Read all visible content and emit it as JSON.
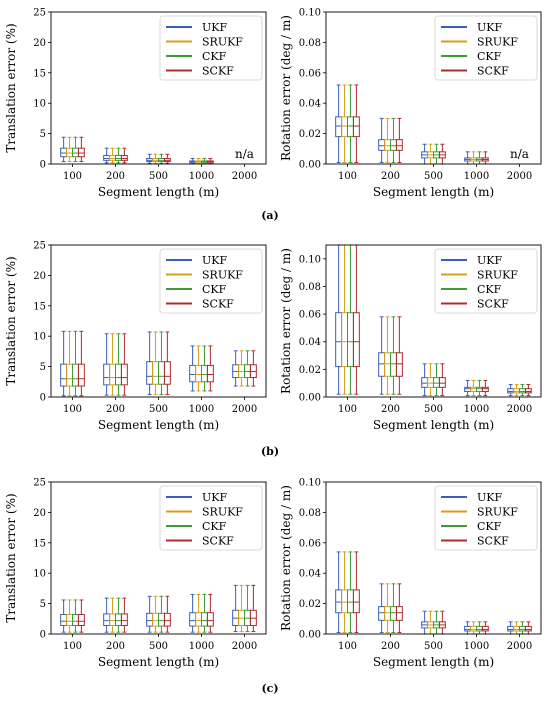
{
  "series_colors": {
    "UKF": "#3a5fb8",
    "SRUKF": "#d4a017",
    "CKF": "#3f9a37",
    "SCKF": "#b2282c"
  },
  "panel_captions": [
    "(a)",
    "(b)",
    "(c)"
  ],
  "chart_data": [
    {
      "type": "box",
      "panel": "(a)",
      "xlabel": "Segment length (m)",
      "ylabel": "Translation error (%)",
      "categories": [
        "100",
        "200",
        "500",
        "1000",
        "2000"
      ],
      "ylim": [
        0,
        25
      ],
      "yticks": [
        "0",
        "5",
        "10",
        "15",
        "20",
        "25"
      ],
      "legend": [
        "UKF",
        "SRUKF",
        "CKF",
        "SCKF"
      ],
      "legend_position": "top-right",
      "annotations": [
        {
          "category": "2000",
          "text": "n/a"
        }
      ],
      "boxes": [
        [
          0.4,
          1.2,
          1.8,
          2.6,
          4.4
        ],
        [
          0.2,
          0.6,
          0.9,
          1.4,
          2.6
        ],
        [
          0.1,
          0.4,
          0.6,
          0.9,
          1.6
        ],
        [
          0.1,
          0.2,
          0.4,
          0.5,
          0.9
        ],
        null
      ]
    },
    {
      "type": "box",
      "panel": "(a)",
      "xlabel": "Segment length (m)",
      "ylabel": "Rotation error (deg / m)",
      "categories": [
        "100",
        "200",
        "500",
        "1000",
        "2000"
      ],
      "ylim": [
        0,
        0.1
      ],
      "yticks": [
        "0.00",
        "0.02",
        "0.04",
        "0.06",
        "0.08",
        "0.10"
      ],
      "legend": [
        "UKF",
        "SRUKF",
        "CKF",
        "SCKF"
      ],
      "legend_position": "top-right",
      "annotations": [
        {
          "category": "2000",
          "text": "n/a"
        }
      ],
      "boxes": [
        [
          0.001,
          0.018,
          0.025,
          0.031,
          0.052
        ],
        [
          0.001,
          0.009,
          0.012,
          0.016,
          0.03
        ],
        [
          0.0,
          0.004,
          0.006,
          0.008,
          0.013
        ],
        [
          0.0,
          0.002,
          0.003,
          0.004,
          0.008
        ],
        null
      ]
    },
    {
      "type": "box",
      "panel": "(b)",
      "xlabel": "Segment length (m)",
      "ylabel": "Translation error (%)",
      "categories": [
        "100",
        "200",
        "500",
        "1000",
        "2000"
      ],
      "ylim": [
        0,
        25
      ],
      "yticks": [
        "0",
        "5",
        "10",
        "15",
        "20",
        "25"
      ],
      "legend": [
        "UKF",
        "SRUKF",
        "CKF",
        "SCKF"
      ],
      "legend_position": "top-right",
      "annotations": [],
      "boxes": [
        [
          0.2,
          1.8,
          3.0,
          5.4,
          10.8
        ],
        [
          0.3,
          2.0,
          3.2,
          5.4,
          10.4
        ],
        [
          0.4,
          2.1,
          3.4,
          5.8,
          10.7
        ],
        [
          1.0,
          2.5,
          3.7,
          5.2,
          8.4
        ],
        [
          1.8,
          3.2,
          4.2,
          5.3,
          7.6
        ]
      ]
    },
    {
      "type": "box",
      "panel": "(b)",
      "xlabel": "Segment length (m)",
      "ylabel": "Rotation error (deg / m)",
      "categories": [
        "100",
        "200",
        "500",
        "1000",
        "2000"
      ],
      "ylim": [
        0,
        0.11
      ],
      "yticks": [
        "0.00",
        "0.02",
        "0.04",
        "0.06",
        "0.08",
        "0.10"
      ],
      "legend": [
        "UKF",
        "SRUKF",
        "CKF",
        "SCKF"
      ],
      "legend_position": "top-right",
      "annotations": [],
      "boxes": [
        [
          0.002,
          0.022,
          0.04,
          0.061,
          0.11
        ],
        [
          0.002,
          0.015,
          0.024,
          0.032,
          0.058
        ],
        [
          0.001,
          0.007,
          0.01,
          0.014,
          0.024
        ],
        [
          0.001,
          0.004,
          0.006,
          0.007,
          0.012
        ],
        [
          0.001,
          0.003,
          0.004,
          0.006,
          0.009
        ]
      ]
    },
    {
      "type": "box",
      "panel": "(c)",
      "xlabel": "Segment length (m)",
      "ylabel": "Translation error (%)",
      "categories": [
        "100",
        "200",
        "500",
        "1000",
        "2000"
      ],
      "ylim": [
        0,
        25
      ],
      "yticks": [
        "0",
        "5",
        "10",
        "15",
        "20",
        "25"
      ],
      "legend": [
        "UKF",
        "SRUKF",
        "CKF",
        "SCKF"
      ],
      "legend_position": "top-right",
      "annotations": [],
      "boxes": [
        [
          0.3,
          1.4,
          2.1,
          3.2,
          5.6
        ],
        [
          0.3,
          1.4,
          2.2,
          3.3,
          5.9
        ],
        [
          0.3,
          1.3,
          2.2,
          3.4,
          6.2
        ],
        [
          0.3,
          1.3,
          2.2,
          3.5,
          6.5
        ],
        [
          0.4,
          1.4,
          2.6,
          3.9,
          8.0
        ]
      ]
    },
    {
      "type": "box",
      "panel": "(c)",
      "xlabel": "Segment length (m)",
      "ylabel": "Rotation error (deg / m)",
      "categories": [
        "100",
        "200",
        "500",
        "1000",
        "2000"
      ],
      "ylim": [
        0,
        0.1
      ],
      "yticks": [
        "0.00",
        "0.02",
        "0.04",
        "0.06",
        "0.08",
        "0.10"
      ],
      "legend": [
        "UKF",
        "SRUKF",
        "CKF",
        "SCKF"
      ],
      "legend_position": "top-right",
      "annotations": [],
      "boxes": [
        [
          0.001,
          0.014,
          0.021,
          0.029,
          0.054
        ],
        [
          0.001,
          0.009,
          0.014,
          0.018,
          0.033
        ],
        [
          0.0,
          0.004,
          0.006,
          0.008,
          0.015
        ],
        [
          0.0,
          0.002,
          0.003,
          0.005,
          0.008
        ],
        [
          0.0,
          0.002,
          0.003,
          0.005,
          0.008
        ]
      ]
    }
  ]
}
